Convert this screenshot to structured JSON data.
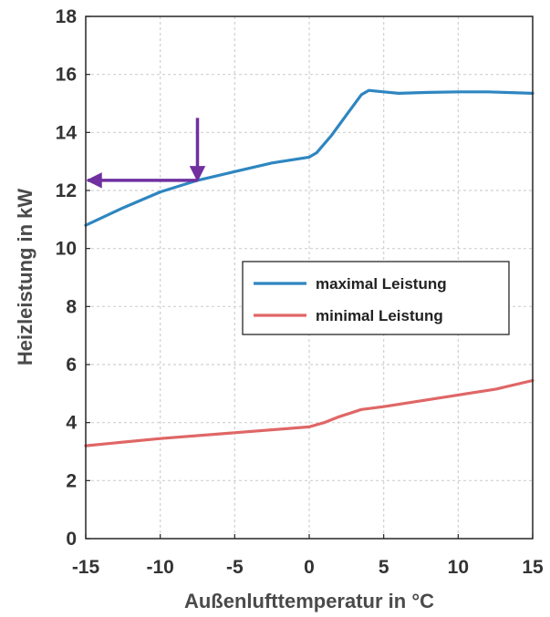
{
  "chart_data": {
    "type": "line",
    "title": "",
    "xlabel": "Außenlufttemperatur in °C",
    "ylabel": "Heizleistung in kW",
    "xlim": [
      -15,
      15
    ],
    "ylim": [
      0,
      18
    ],
    "xticks": [
      -15,
      -10,
      -5,
      0,
      5,
      10,
      15
    ],
    "yticks": [
      0,
      2,
      4,
      6,
      8,
      10,
      12,
      14,
      16,
      18
    ],
    "grid": true,
    "legend_position": "center-right",
    "series": [
      {
        "name": "maximal Leistung",
        "color": "#2e86c1",
        "x": [
          -15,
          -12.5,
          -10,
          -7.5,
          -5,
          -2.5,
          0,
          0.5,
          1.5,
          2.5,
          3.5,
          4,
          5,
          6,
          8,
          10,
          12,
          15
        ],
        "y": [
          10.8,
          11.4,
          11.95,
          12.35,
          12.65,
          12.95,
          13.15,
          13.3,
          13.9,
          14.6,
          15.3,
          15.45,
          15.4,
          15.35,
          15.38,
          15.4,
          15.4,
          15.35
        ]
      },
      {
        "name": "minimal Leistung",
        "color": "#e06666",
        "x": [
          -15,
          -10,
          -5,
          0,
          1,
          2,
          3.5,
          5,
          7.5,
          10,
          12.5,
          15
        ],
        "y": [
          3.2,
          3.45,
          3.65,
          3.85,
          4.0,
          4.2,
          4.45,
          4.55,
          4.75,
          4.95,
          5.15,
          5.45
        ]
      }
    ],
    "annotations": {
      "arrow_color": "#7030a0",
      "vertical_arrow": {
        "x": -7.5,
        "from_y": 14.5,
        "to_y": 12.35
      },
      "horizontal_arrow": {
        "y": 12.35,
        "from_x": -7.5,
        "to_x": -15
      }
    }
  }
}
